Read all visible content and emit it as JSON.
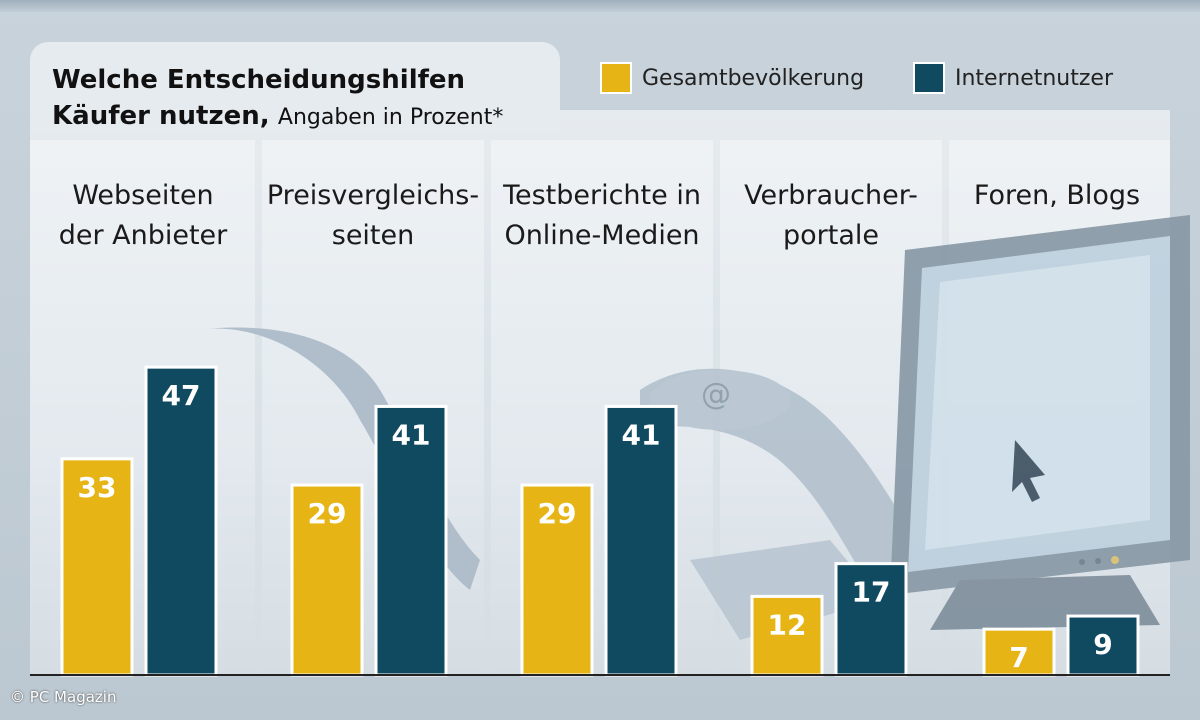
{
  "chart_data": {
    "type": "bar",
    "title": "Welche Entscheidungshilfen",
    "subtitle_bold": "Käufer nutzen,",
    "subtitle": "Angaben in Prozent*",
    "categories": [
      "Webseiten\nder Anbieter",
      "Preisvergleichs-\nseiten",
      "Testberichte in\nOnline-Medien",
      "Verbraucher-\nportale",
      "Foren, Blogs"
    ],
    "series": [
      {
        "name": "Gesamtbevölkerung",
        "color": "#e7b416",
        "values": [
          33,
          29,
          29,
          12,
          7
        ]
      },
      {
        "name": "Internetnutzer",
        "color": "#0f4a61",
        "values": [
          47,
          41,
          41,
          17,
          9
        ]
      }
    ],
    "ylim": [
      0,
      100
    ],
    "legend_position": "top-right"
  },
  "footer": {
    "copyright": "© PC Magazin"
  }
}
